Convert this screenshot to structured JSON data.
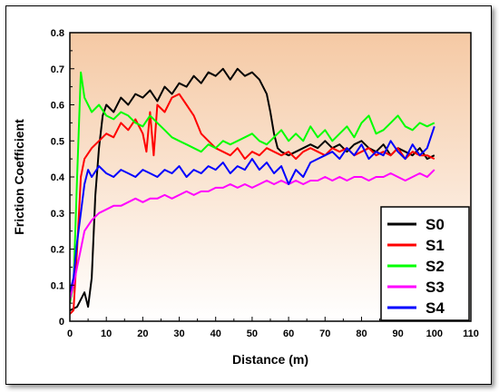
{
  "chart_data": {
    "type": "line",
    "title": "",
    "xlabel": "Distance (m)",
    "ylabel": "Friction Coefficient",
    "xlim": [
      0,
      110
    ],
    "ylim": [
      0,
      0.8
    ],
    "xticks": [
      0,
      10,
      20,
      30,
      40,
      50,
      60,
      70,
      80,
      90,
      100,
      110
    ],
    "yticks": [
      0,
      0.1,
      0.2,
      0.3,
      0.4,
      0.5,
      0.6,
      0.7,
      0.8
    ],
    "grid": false,
    "legend_position": "bottom-right",
    "background": {
      "top_color": "#f5c9a4",
      "bottom_color": "#ffffff"
    },
    "series": [
      {
        "name": "S0",
        "color": "#000000",
        "x": [
          0,
          2,
          4,
          5,
          6,
          7,
          8,
          9,
          10,
          12,
          14,
          16,
          18,
          20,
          22,
          24,
          26,
          28,
          30,
          32,
          34,
          36,
          38,
          40,
          42,
          44,
          46,
          48,
          50,
          52,
          54,
          55,
          56,
          57,
          58,
          60,
          62,
          64,
          66,
          68,
          70,
          72,
          74,
          76,
          78,
          80,
          82,
          84,
          86,
          88,
          90,
          92,
          94,
          96,
          98,
          100
        ],
        "y": [
          0.03,
          0.04,
          0.08,
          0.04,
          0.12,
          0.35,
          0.48,
          0.57,
          0.6,
          0.58,
          0.62,
          0.6,
          0.63,
          0.62,
          0.64,
          0.61,
          0.65,
          0.63,
          0.66,
          0.65,
          0.68,
          0.66,
          0.69,
          0.68,
          0.7,
          0.67,
          0.7,
          0.68,
          0.69,
          0.67,
          0.63,
          0.58,
          0.52,
          0.48,
          0.47,
          0.46,
          0.47,
          0.48,
          0.49,
          0.48,
          0.5,
          0.48,
          0.49,
          0.47,
          0.49,
          0.5,
          0.48,
          0.47,
          0.49,
          0.46,
          0.48,
          0.47,
          0.46,
          0.48,
          0.45,
          0.46
        ]
      },
      {
        "name": "S1",
        "color": "#ff0000",
        "x": [
          0,
          1,
          2,
          3,
          4,
          6,
          8,
          10,
          12,
          14,
          16,
          18,
          20,
          21,
          22,
          23,
          24,
          26,
          28,
          30,
          32,
          34,
          36,
          38,
          40,
          42,
          44,
          46,
          48,
          50,
          52,
          54,
          56,
          58,
          60,
          62,
          64,
          66,
          68,
          70,
          72,
          74,
          76,
          78,
          80,
          82,
          84,
          86,
          88,
          90,
          92,
          94,
          96,
          98,
          100
        ],
        "y": [
          0.02,
          0.03,
          0.2,
          0.4,
          0.45,
          0.48,
          0.5,
          0.52,
          0.51,
          0.55,
          0.53,
          0.56,
          0.52,
          0.47,
          0.58,
          0.46,
          0.6,
          0.58,
          0.62,
          0.63,
          0.6,
          0.57,
          0.52,
          0.5,
          0.48,
          0.47,
          0.46,
          0.48,
          0.45,
          0.47,
          0.46,
          0.48,
          0.47,
          0.46,
          0.47,
          0.45,
          0.47,
          0.48,
          0.47,
          0.46,
          0.48,
          0.47,
          0.48,
          0.46,
          0.47,
          0.48,
          0.46,
          0.47,
          0.46,
          0.48,
          0.45,
          0.47,
          0.46,
          0.46,
          0.45
        ]
      },
      {
        "name": "S2",
        "color": "#00ff00",
        "x": [
          0,
          1,
          2,
          3,
          4,
          5,
          6,
          8,
          10,
          12,
          14,
          16,
          18,
          20,
          22,
          24,
          26,
          28,
          30,
          32,
          34,
          36,
          38,
          40,
          42,
          44,
          46,
          48,
          50,
          52,
          54,
          56,
          58,
          60,
          62,
          64,
          66,
          68,
          70,
          72,
          74,
          76,
          78,
          80,
          82,
          84,
          86,
          88,
          90,
          92,
          94,
          96,
          98,
          100
        ],
        "y": [
          0.05,
          0.1,
          0.4,
          0.69,
          0.62,
          0.6,
          0.58,
          0.6,
          0.57,
          0.56,
          0.58,
          0.57,
          0.55,
          0.54,
          0.57,
          0.55,
          0.53,
          0.51,
          0.5,
          0.49,
          0.48,
          0.47,
          0.49,
          0.48,
          0.5,
          0.49,
          0.5,
          0.51,
          0.52,
          0.5,
          0.49,
          0.51,
          0.53,
          0.5,
          0.52,
          0.5,
          0.54,
          0.51,
          0.53,
          0.5,
          0.52,
          0.54,
          0.51,
          0.55,
          0.57,
          0.52,
          0.53,
          0.55,
          0.57,
          0.54,
          0.53,
          0.55,
          0.54,
          0.55
        ]
      },
      {
        "name": "S3",
        "color": "#ff00ff",
        "x": [
          0,
          1,
          2,
          3,
          4,
          6,
          8,
          10,
          12,
          14,
          16,
          18,
          20,
          22,
          24,
          26,
          28,
          30,
          32,
          34,
          36,
          38,
          40,
          42,
          44,
          46,
          48,
          50,
          52,
          54,
          56,
          58,
          60,
          62,
          64,
          66,
          68,
          70,
          72,
          74,
          76,
          78,
          80,
          82,
          84,
          86,
          88,
          90,
          92,
          94,
          96,
          98,
          100
        ],
        "y": [
          0.06,
          0.1,
          0.15,
          0.2,
          0.25,
          0.28,
          0.3,
          0.31,
          0.32,
          0.32,
          0.33,
          0.34,
          0.33,
          0.34,
          0.34,
          0.35,
          0.34,
          0.35,
          0.36,
          0.35,
          0.36,
          0.36,
          0.37,
          0.37,
          0.38,
          0.37,
          0.38,
          0.37,
          0.38,
          0.39,
          0.38,
          0.39,
          0.38,
          0.39,
          0.38,
          0.39,
          0.39,
          0.4,
          0.39,
          0.4,
          0.39,
          0.4,
          0.4,
          0.39,
          0.4,
          0.4,
          0.41,
          0.4,
          0.39,
          0.4,
          0.41,
          0.4,
          0.42
        ]
      },
      {
        "name": "S4",
        "color": "#0000ff",
        "x": [
          0,
          1,
          2,
          3,
          4,
          5,
          6,
          8,
          10,
          12,
          14,
          16,
          18,
          20,
          22,
          24,
          26,
          28,
          30,
          32,
          34,
          36,
          38,
          40,
          42,
          44,
          46,
          48,
          50,
          52,
          54,
          56,
          58,
          60,
          62,
          64,
          66,
          68,
          70,
          72,
          74,
          76,
          78,
          80,
          82,
          84,
          86,
          88,
          90,
          92,
          94,
          96,
          98,
          100
        ],
        "y": [
          0.08,
          0.12,
          0.22,
          0.3,
          0.38,
          0.42,
          0.4,
          0.43,
          0.41,
          0.4,
          0.42,
          0.41,
          0.4,
          0.42,
          0.41,
          0.4,
          0.42,
          0.41,
          0.43,
          0.4,
          0.42,
          0.41,
          0.43,
          0.42,
          0.44,
          0.41,
          0.43,
          0.42,
          0.45,
          0.42,
          0.44,
          0.41,
          0.43,
          0.38,
          0.42,
          0.4,
          0.44,
          0.45,
          0.46,
          0.47,
          0.45,
          0.48,
          0.46,
          0.49,
          0.45,
          0.47,
          0.46,
          0.5,
          0.47,
          0.45,
          0.49,
          0.46,
          0.48,
          0.54
        ]
      }
    ]
  }
}
